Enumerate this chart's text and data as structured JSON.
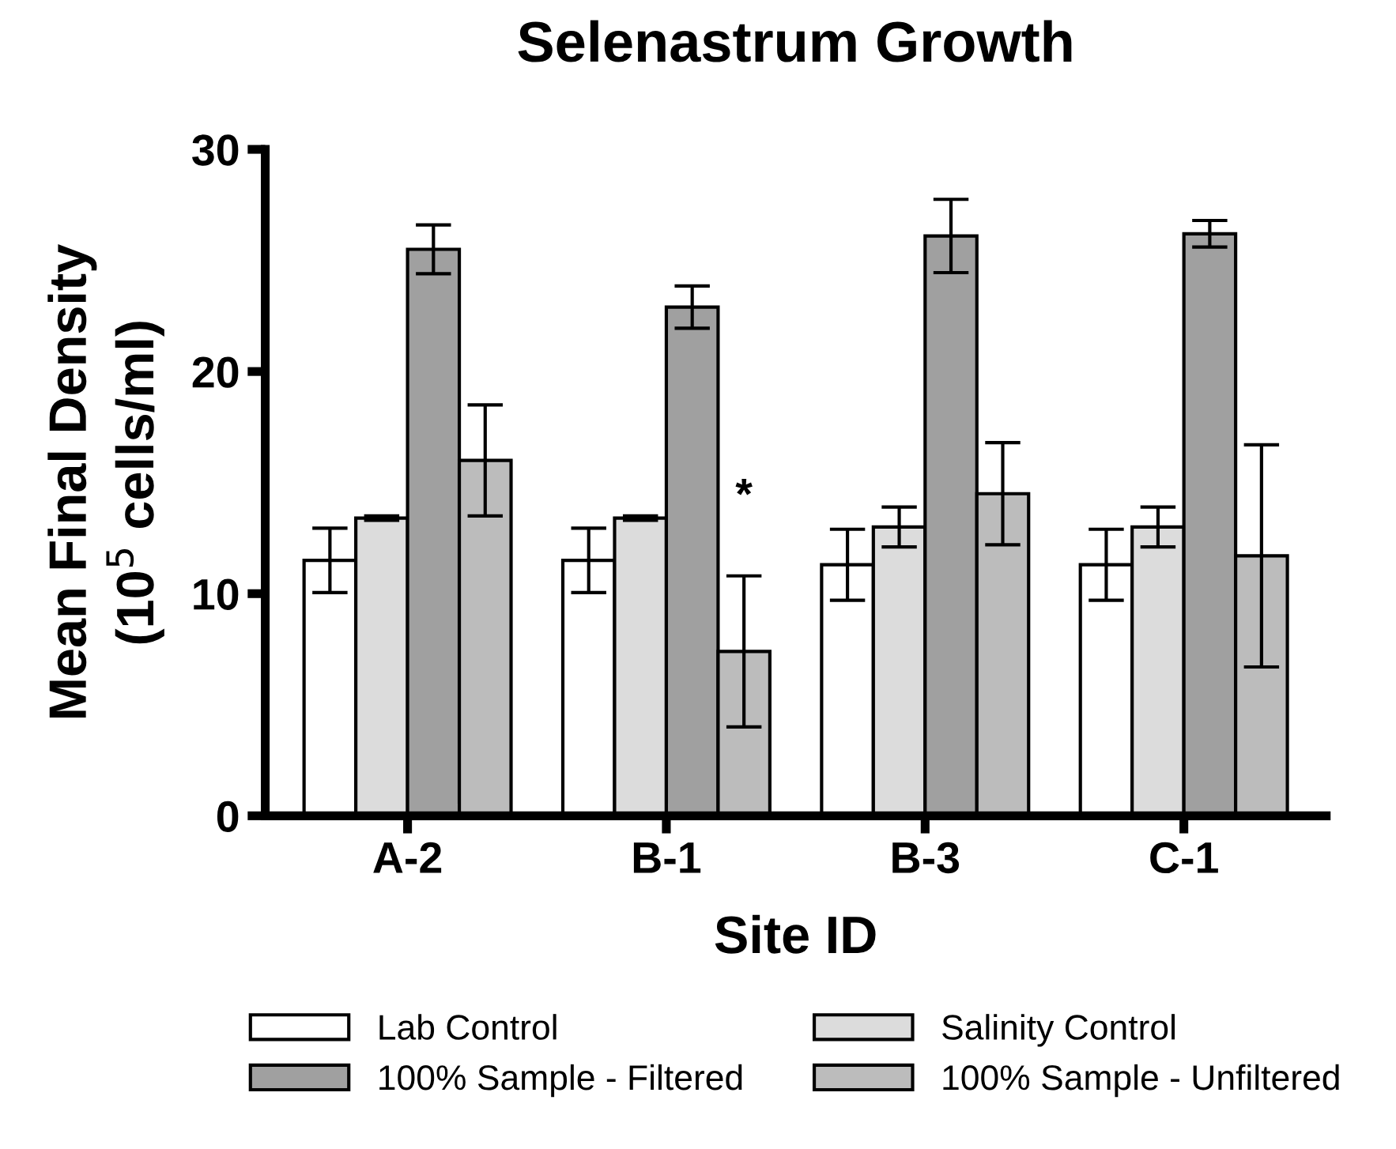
{
  "chart_data": {
    "type": "bar",
    "title": "Selenastrum Growth",
    "xlabel": "Site ID",
    "ylabel": "Mean Final Density\n(10$^{5}$ cells/ml)",
    "categories": [
      "A-2",
      "B-1",
      "B-3",
      "C-1"
    ],
    "series": [
      {
        "name": "Lab Control",
        "color": "#ffffff",
        "values": [
          11.5,
          11.5,
          11.3,
          11.3
        ],
        "errors": [
          1.45,
          1.45,
          1.6,
          1.6
        ]
      },
      {
        "name": "Salinity Control",
        "color": "#dcdcdc",
        "values": [
          13.4,
          13.4,
          13.0,
          13.0
        ],
        "errors": [
          0.1,
          0.1,
          0.9,
          0.9
        ]
      },
      {
        "name": "100% Sample - Filtered",
        "color": "#a0a0a0",
        "values": [
          25.5,
          22.9,
          26.1,
          26.2
        ],
        "errors": [
          1.1,
          0.95,
          1.65,
          0.6
        ]
      },
      {
        "name": "100% Sample - Unfiltered",
        "color": "#bcbcbc",
        "values": [
          16.0,
          7.4,
          14.5,
          11.7
        ],
        "errors": [
          2.5,
          3.4,
          2.3,
          5.0
        ]
      }
    ],
    "annotations": [
      {
        "text": "*",
        "x": "B-1",
        "y": 13.4
      }
    ],
    "ylim": [
      0,
      30
    ],
    "yticks": [
      0,
      10,
      20,
      30
    ],
    "grid": false,
    "legend": "bottom"
  }
}
